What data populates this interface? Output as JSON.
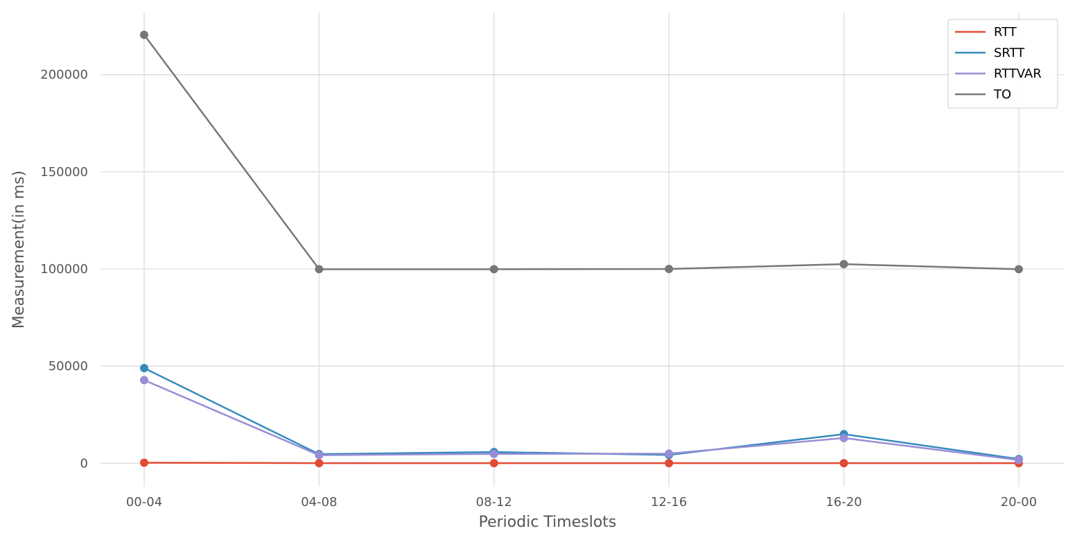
{
  "chart_data": {
    "type": "line",
    "categories": [
      "00-04",
      "04-08",
      "08-12",
      "12-16",
      "16-20",
      "20-00"
    ],
    "xlabel": "Periodic Timeslots",
    "ylabel": "Measurement(in ms)",
    "ylim": [
      -12000,
      232000
    ],
    "yticks": [
      0,
      50000,
      100000,
      150000,
      200000
    ],
    "ytick_labels": [
      "0",
      "50000",
      "100000",
      "150000",
      "200000"
    ],
    "grid": true,
    "legend": "top-right",
    "series": [
      {
        "name": "RTT",
        "color": "#e24a33",
        "values": [
          300,
          100,
          100,
          100,
          100,
          100
        ]
      },
      {
        "name": "SRTT",
        "color": "#348abd",
        "values": [
          49000,
          4700,
          5800,
          4300,
          15000,
          2200
        ]
      },
      {
        "name": "RTTVAR",
        "color": "#988ed5",
        "values": [
          42800,
          4200,
          4800,
          5000,
          13000,
          1700
        ]
      },
      {
        "name": "TO",
        "color": "#777777",
        "values": [
          220500,
          99900,
          99900,
          100000,
          102500,
          99900
        ]
      }
    ]
  }
}
